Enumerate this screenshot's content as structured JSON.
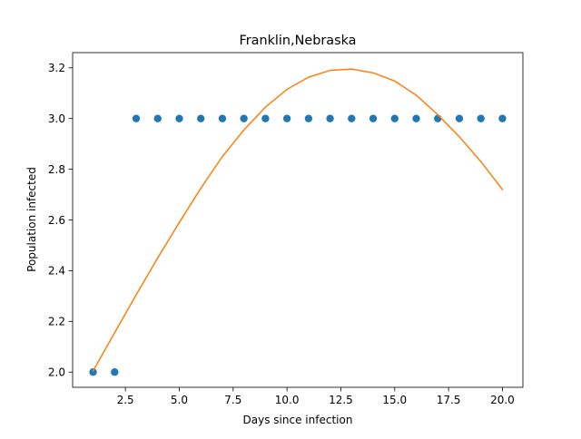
{
  "chart_data": {
    "type": "scatter",
    "title": "Franklin,Nebraska",
    "xlabel": "Days since infection",
    "ylabel": "Population infected",
    "xlim": [
      0.05,
      20.95
    ],
    "ylim": [
      1.94,
      3.26
    ],
    "grid": false,
    "x_ticks": [
      {
        "value": 2.5,
        "label": "2.5"
      },
      {
        "value": 5.0,
        "label": "5.0"
      },
      {
        "value": 7.5,
        "label": "7.5"
      },
      {
        "value": 10.0,
        "label": "10.0"
      },
      {
        "value": 12.5,
        "label": "12.5"
      },
      {
        "value": 15.0,
        "label": "15.0"
      },
      {
        "value": 17.5,
        "label": "17.5"
      },
      {
        "value": 20.0,
        "label": "20.0"
      }
    ],
    "y_ticks": [
      {
        "value": 2.0,
        "label": "2.0"
      },
      {
        "value": 2.2,
        "label": "2.2"
      },
      {
        "value": 2.4,
        "label": "2.4"
      },
      {
        "value": 2.6,
        "label": "2.6"
      },
      {
        "value": 2.8,
        "label": "2.8"
      },
      {
        "value": 3.0,
        "label": "3.0"
      },
      {
        "value": 3.2,
        "label": "3.2"
      }
    ],
    "series": [
      {
        "kind": "scatter",
        "color": "#1f77b4",
        "x": [
          1,
          2,
          3,
          4,
          5,
          6,
          7,
          8,
          9,
          10,
          11,
          12,
          13,
          14,
          15,
          16,
          17,
          18,
          19,
          20
        ],
        "y": [
          2,
          2,
          3,
          3,
          3,
          3,
          3,
          3,
          3,
          3,
          3,
          3,
          3,
          3,
          3,
          3,
          3,
          3,
          3,
          3
        ]
      },
      {
        "kind": "line",
        "color": "#ff7f0e",
        "x": [
          1,
          2,
          3,
          4,
          5,
          6,
          7,
          8,
          9,
          10,
          11,
          12,
          13,
          14,
          15,
          16,
          17,
          18,
          19,
          20
        ],
        "y": [
          2.005,
          2.155,
          2.305,
          2.45,
          2.59,
          2.725,
          2.85,
          2.955,
          3.045,
          3.115,
          3.163,
          3.19,
          3.195,
          3.18,
          3.148,
          3.092,
          3.015,
          2.928,
          2.83,
          2.72
        ]
      }
    ]
  }
}
